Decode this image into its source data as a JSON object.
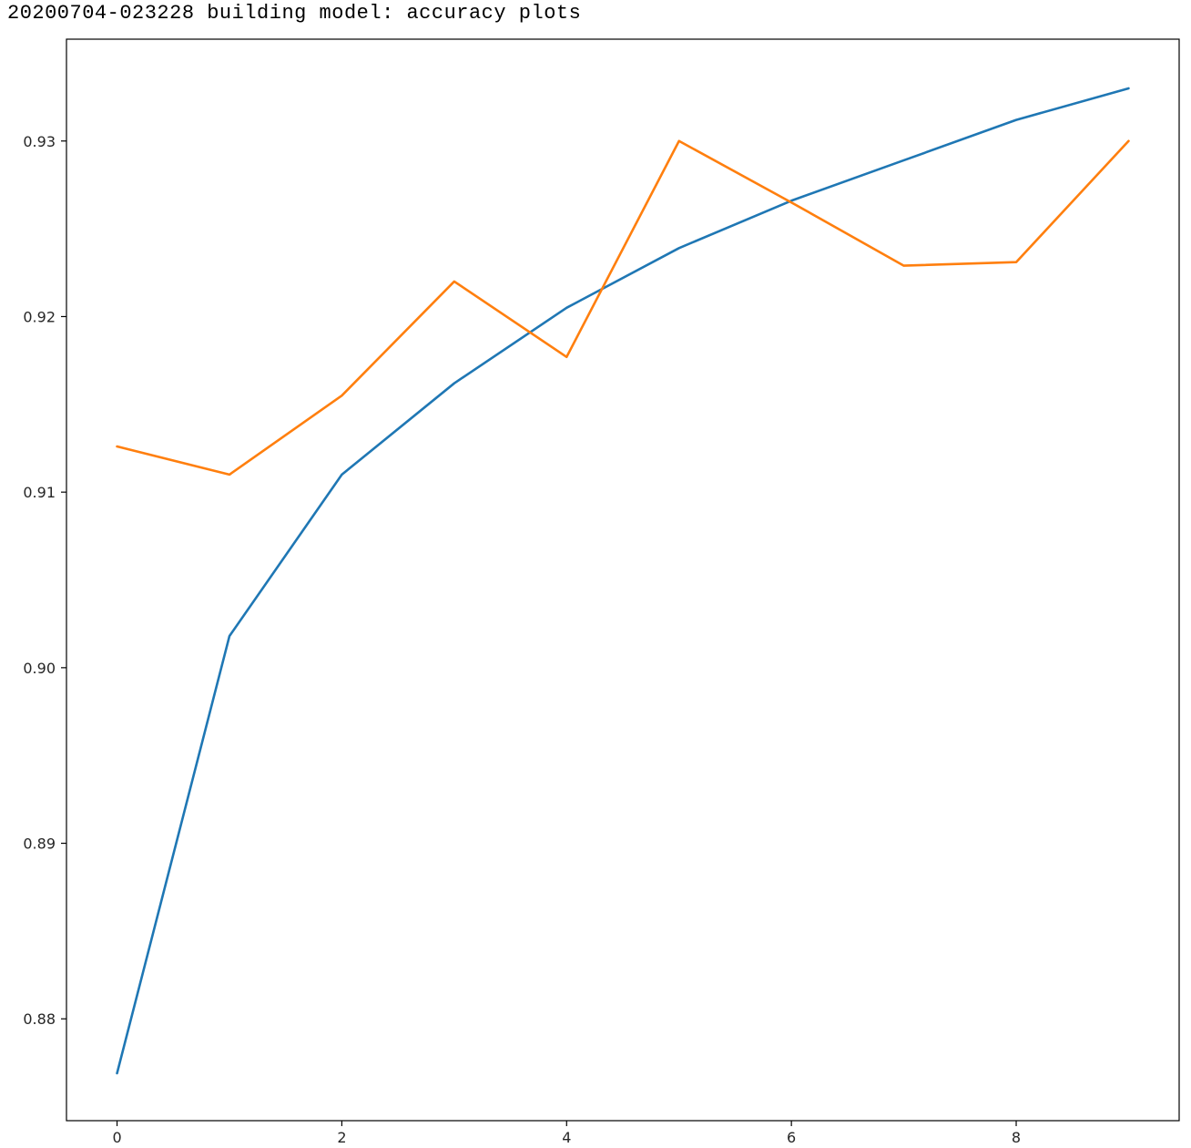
{
  "header": {
    "text": "20200704-023228 building model: accuracy plots"
  },
  "chart_data": {
    "type": "line",
    "title": "",
    "xlabel": "",
    "ylabel": "",
    "xlim": [
      -0.45,
      9.45
    ],
    "ylim": [
      0.8742,
      0.9358
    ],
    "x_ticks": [
      0,
      2,
      4,
      6,
      8
    ],
    "y_ticks": [
      0.88,
      0.89,
      0.9,
      0.91,
      0.92,
      0.93
    ],
    "grid": false,
    "legend": "none",
    "x": [
      0,
      1,
      2,
      3,
      4,
      5,
      6,
      7,
      8,
      9
    ],
    "series": [
      {
        "color": "#1f77b4",
        "values": [
          0.8769,
          0.9018,
          0.911,
          0.9162,
          0.9205,
          0.9239,
          0.9266,
          0.9289,
          0.9312,
          0.933
        ]
      },
      {
        "color": "#ff7f0e",
        "values": [
          0.9126,
          0.911,
          0.9155,
          0.922,
          0.9177,
          0.93,
          0.9265,
          0.9229,
          0.9231,
          0.93
        ]
      }
    ]
  }
}
